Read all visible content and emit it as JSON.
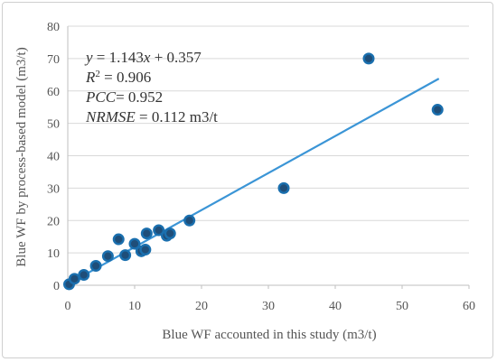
{
  "chart_data": {
    "type": "scatter",
    "title": "",
    "xlabel": "Blue WF accounted in this study (m3/t)",
    "ylabel": "Blue WF by process-based model (m3/t)",
    "xlim": [
      0,
      60
    ],
    "ylim": [
      0,
      80
    ],
    "x_ticks": [
      "0",
      "10",
      "20",
      "30",
      "40",
      "50",
      "60"
    ],
    "y_ticks": [
      "0",
      "10",
      "20",
      "30",
      "40",
      "50",
      "60",
      "70",
      "80"
    ],
    "grid": "horizontal",
    "point_color": "#1f4e79",
    "point_edge_color": "#1a6fae",
    "trend_color": "#3b95d6",
    "points": [
      {
        "x": 0.2,
        "y": 0.3
      },
      {
        "x": 1.0,
        "y": 2.0
      },
      {
        "x": 2.4,
        "y": 3.2
      },
      {
        "x": 4.2,
        "y": 6.0
      },
      {
        "x": 6.0,
        "y": 9.0
      },
      {
        "x": 7.6,
        "y": 14.2
      },
      {
        "x": 8.6,
        "y": 9.3
      },
      {
        "x": 10.0,
        "y": 12.8
      },
      {
        "x": 11.0,
        "y": 10.5
      },
      {
        "x": 11.6,
        "y": 11.0
      },
      {
        "x": 11.8,
        "y": 16.0
      },
      {
        "x": 13.6,
        "y": 17.0
      },
      {
        "x": 14.8,
        "y": 15.3
      },
      {
        "x": 15.3,
        "y": 16.0
      },
      {
        "x": 18.2,
        "y": 20.0
      },
      {
        "x": 32.3,
        "y": 30.0
      },
      {
        "x": 45.0,
        "y": 70.0
      },
      {
        "x": 55.3,
        "y": 54.2
      }
    ],
    "trendline": {
      "slope": 1.143,
      "intercept": 0.357,
      "x_range": [
        0,
        55.5
      ]
    },
    "annotations": {
      "equation": {
        "y": "y",
        "eq": " = 1.143",
        "x": "x",
        "rest": " + 0.357"
      },
      "r2": {
        "label": "R",
        "sup": "2",
        "rest": " = 0.906"
      },
      "pcc": {
        "label": "PCC",
        "rest": "= 0.952"
      },
      "nrmse": {
        "label": "NRMSE",
        "rest": " = 0.112 m3/t"
      }
    }
  }
}
